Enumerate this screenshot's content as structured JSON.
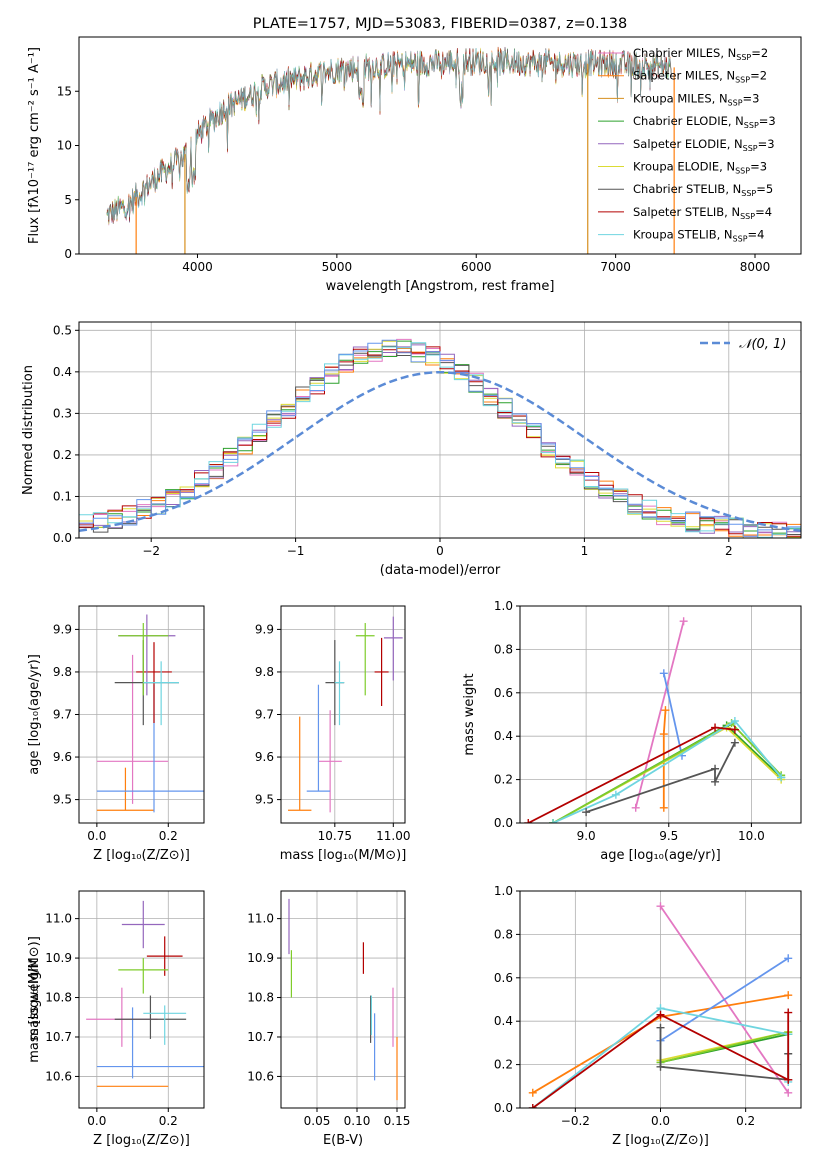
{
  "title": "PLATE=1757, MJD=53083, FIBERID=0387, z=0.138",
  "colors": [
    "#e377c2",
    "#ff7f0e",
    "#d68f1f",
    "#2ca02c",
    "#9467bd",
    "#dbdb34",
    "#555555",
    "#b30000",
    "#6fd5e0",
    "#6495ed",
    "#7fcc2b"
  ],
  "chart_data": [
    {
      "id": "spectrum",
      "type": "line",
      "xlabel": "wavelength [Angstrom, rest frame]",
      "ylabel": "Flux [fλ10⁻¹⁷ erg cm⁻² s⁻¹ A⁻¹]",
      "xlim": [
        3150,
        8330
      ],
      "ylim": [
        0,
        20
      ],
      "xticks": [
        4000,
        5000,
        6000,
        7000,
        8000
      ],
      "yticks": [
        0,
        5,
        10,
        15
      ],
      "legend_position": "right",
      "series": [
        {
          "name": "Chabrier MILES, N_SSP=2",
          "color": "#e377c2"
        },
        {
          "name": "Salpeter MILES, N_SSP=2",
          "color": "#ff7f0e"
        },
        {
          "name": "Kroupa MILES, N_SSP=3",
          "color": "#d68f1f"
        },
        {
          "name": "Chabrier ELODIE, N_SSP=3",
          "color": "#2ca02c"
        },
        {
          "name": "Salpeter ELODIE, N_SSP=3",
          "color": "#9467bd"
        },
        {
          "name": "Kroupa ELODIE, N_SSP=3",
          "color": "#dbdb34"
        },
        {
          "name": "Chabrier STELIB, N_SSP=5",
          "color": "#555555"
        },
        {
          "name": "Salpeter STELIB, N_SSP=4",
          "color": "#b30000"
        },
        {
          "name": "Kroupa STELIB, N_SSP=4",
          "color": "#6fd5e0"
        }
      ],
      "continuum": {
        "x": [
          3350,
          3500,
          3700,
          3900,
          4000,
          4200,
          4500,
          5000,
          5500,
          6000,
          6500,
          7000,
          7400
        ],
        "y": [
          3.5,
          4.5,
          7.0,
          9.0,
          11.0,
          13.5,
          15.5,
          17.0,
          17.5,
          17.8,
          17.6,
          17.5,
          17.2
        ]
      }
    },
    {
      "id": "residuals",
      "type": "bar",
      "xlabel": "(data-model)/error",
      "ylabel": "Normed distribution",
      "xlim": [
        -2.5,
        2.5
      ],
      "ylim": [
        0,
        0.52
      ],
      "xticks": [
        -2,
        -1,
        0,
        1,
        2
      ],
      "yticks": [
        0.0,
        0.1,
        0.2,
        0.3,
        0.4,
        0.5
      ],
      "legend": "𝒩(0, 1)",
      "legend_position": "top-right",
      "grid": true
    },
    {
      "id": "z-age",
      "type": "scatter",
      "xlabel": "Z [log₁₀(Z/Z⊙)]",
      "ylabel": "age  [log₁₀(age/yr)]",
      "xlim": [
        -0.05,
        0.3
      ],
      "ylim": [
        9.445,
        9.955
      ],
      "xticks": [
        0.0,
        0.2
      ],
      "yticks": [
        9.5,
        9.6,
        9.7,
        9.8,
        9.9
      ],
      "grid": true,
      "points": [
        {
          "x": 0.1,
          "y": 9.59,
          "xerr": [
            0.1,
            0.1
          ],
          "yerr": [
            0.1,
            0.25
          ],
          "color": "#e377c2"
        },
        {
          "x": 0.08,
          "y": 9.475,
          "xerr": [
            0.08,
            0.08
          ],
          "yerr": [
            0.0,
            0.1
          ],
          "color": "#ff7f0e"
        },
        {
          "x": 0.16,
          "y": 9.52,
          "xerr": [
            0.16,
            0.15
          ],
          "yerr": [
            0.05,
            0.25
          ],
          "color": "#6495ed"
        },
        {
          "x": 0.16,
          "y": 9.8,
          "xerr": [
            0.05,
            0.05
          ],
          "yerr": [
            0.12,
            0.07
          ],
          "color": "#b30000"
        },
        {
          "x": 0.13,
          "y": 9.775,
          "xerr": [
            0.08,
            0.1
          ],
          "yerr": [
            0.1,
            0.1
          ],
          "color": "#555555"
        },
        {
          "x": 0.14,
          "y": 9.885,
          "xerr": [
            0.08,
            0.08
          ],
          "yerr": [
            0.14,
            0.05
          ],
          "color": "#9467bd"
        },
        {
          "x": 0.13,
          "y": 9.885,
          "xerr": [
            0.07,
            0.07
          ],
          "yerr": [
            0.14,
            0.03
          ],
          "color": "#7fcc2b"
        },
        {
          "x": 0.18,
          "y": 9.775,
          "xerr": [
            0.05,
            0.05
          ],
          "yerr": [
            0.1,
            0.05
          ],
          "color": "#6fd5e0"
        }
      ]
    },
    {
      "id": "mass-age",
      "type": "scatter",
      "xlabel": "mass [log₁₀(M/M⊙)]",
      "ylabel": "",
      "xlim": [
        10.52,
        11.05
      ],
      "ylim": [
        9.445,
        9.955
      ],
      "xticks": [
        10.75,
        11.0
      ],
      "xtick_labels": [
        "10.75",
        "11.00"
      ],
      "yticks": [
        9.5,
        9.6,
        9.7,
        9.8,
        9.9
      ],
      "grid": true,
      "points": [
        {
          "x": 10.73,
          "y": 9.59,
          "xerr": [
            0.05,
            0.05
          ],
          "yerr": [
            0.12,
            0.12
          ],
          "color": "#e377c2"
        },
        {
          "x": 10.6,
          "y": 9.475,
          "xerr": [
            0.05,
            0.05
          ],
          "yerr": [
            0.0,
            0.22
          ],
          "color": "#ff7f0e"
        },
        {
          "x": 10.68,
          "y": 9.52,
          "xerr": [
            0.05,
            0.05
          ],
          "yerr": [
            0.0,
            0.25
          ],
          "color": "#6495ed"
        },
        {
          "x": 10.95,
          "y": 9.8,
          "xerr": [
            0.03,
            0.03
          ],
          "yerr": [
            0.08,
            0.08
          ],
          "color": "#b30000"
        },
        {
          "x": 10.75,
          "y": 9.775,
          "xerr": [
            0.04,
            0.04
          ],
          "yerr": [
            0.1,
            0.1
          ],
          "color": "#555555"
        },
        {
          "x": 11.0,
          "y": 9.88,
          "xerr": [
            0.04,
            0.04
          ],
          "yerr": [
            0.1,
            0.05
          ],
          "color": "#9467bd"
        },
        {
          "x": 10.88,
          "y": 9.885,
          "xerr": [
            0.04,
            0.04
          ],
          "yerr": [
            0.14,
            0.03
          ],
          "color": "#7fcc2b"
        },
        {
          "x": 10.77,
          "y": 9.775,
          "xerr": [
            0.02,
            0.02
          ],
          "yerr": [
            0.1,
            0.05
          ],
          "color": "#6fd5e0"
        }
      ]
    },
    {
      "id": "age-weight",
      "type": "line",
      "xlabel": "age  [log₁₀(age/yr)]",
      "ylabel": "mass weight",
      "xlim": [
        8.6,
        10.3
      ],
      "ylim": [
        0,
        1
      ],
      "xticks": [
        9.0,
        9.5,
        10.0
      ],
      "yticks": [
        0.0,
        0.2,
        0.4,
        0.6,
        0.8,
        1.0
      ],
      "grid": true,
      "series": [
        {
          "color": "#e377c2",
          "x": [
            9.3,
            9.59
          ],
          "y": [
            0.07,
            0.93
          ]
        },
        {
          "color": "#ff7f0e",
          "x": [
            9.47,
            9.47,
            9.48
          ],
          "y": [
            0.07,
            0.41,
            0.52
          ]
        },
        {
          "color": "#6495ed",
          "x": [
            9.47,
            9.58
          ],
          "y": [
            0.69,
            0.31
          ]
        },
        {
          "color": "#2ca02c",
          "x": [
            8.8,
            9.85,
            10.18
          ],
          "y": [
            0.0,
            0.45,
            0.21
          ]
        },
        {
          "color": "#dbdb34",
          "x": [
            8.8,
            9.85,
            10.18
          ],
          "y": [
            0.0,
            0.44,
            0.2
          ]
        },
        {
          "color": "#7fcc2b",
          "x": [
            8.8,
            9.88,
            10.18
          ],
          "y": [
            0.0,
            0.46,
            0.22
          ]
        },
        {
          "color": "#6fd5e0",
          "x": [
            8.8,
            9.18,
            9.9,
            10.18
          ],
          "y": [
            0.0,
            0.13,
            0.47,
            0.21
          ]
        },
        {
          "color": "#555555",
          "x": [
            9.0,
            9.78,
            9.78,
            9.9
          ],
          "y": [
            0.05,
            0.25,
            0.19,
            0.37
          ]
        },
        {
          "color": "#b30000",
          "x": [
            8.65,
            9.78,
            9.9
          ],
          "y": [
            0.0,
            0.44,
            0.43
          ]
        }
      ]
    },
    {
      "id": "z-mass",
      "type": "scatter",
      "xlabel": "Z [log₁₀(Z/Z⊙)]",
      "ylabel": "mass [log₁₀(M/M⊙)]",
      "xlim": [
        -0.05,
        0.3
      ],
      "ylim": [
        10.52,
        11.07
      ],
      "xticks": [
        0.0,
        0.2
      ],
      "yticks": [
        10.6,
        10.7,
        10.8,
        10.9,
        11.0
      ],
      "grid": true,
      "points": [
        {
          "x": 0.07,
          "y": 10.745,
          "xerr": [
            0.1,
            0.1
          ],
          "yerr": [
            0.07,
            0.08
          ],
          "color": "#e377c2"
        },
        {
          "x": 0.1,
          "y": 10.575,
          "xerr": [
            0.1,
            0.1
          ],
          "yerr": [
            0.0,
            0.0
          ],
          "color": "#ff7f0e"
        },
        {
          "x": 0.1,
          "y": 10.625,
          "xerr": [
            0.1,
            0.2
          ],
          "yerr": [
            0.03,
            0.15
          ],
          "color": "#6495ed"
        },
        {
          "x": 0.19,
          "y": 10.905,
          "xerr": [
            0.05,
            0.05
          ],
          "yerr": [
            0.05,
            0.05
          ],
          "color": "#b30000"
        },
        {
          "x": 0.15,
          "y": 10.745,
          "xerr": [
            0.1,
            0.1
          ],
          "yerr": [
            0.05,
            0.06
          ],
          "color": "#555555"
        },
        {
          "x": 0.13,
          "y": 10.985,
          "xerr": [
            0.06,
            0.06
          ],
          "yerr": [
            0.06,
            0.06
          ],
          "color": "#9467bd"
        },
        {
          "x": 0.13,
          "y": 10.87,
          "xerr": [
            0.07,
            0.07
          ],
          "yerr": [
            0.06,
            0.03
          ],
          "color": "#7fcc2b"
        },
        {
          "x": 0.19,
          "y": 10.76,
          "xerr": [
            0.06,
            0.06
          ],
          "yerr": [
            0.08,
            0.02
          ],
          "color": "#6fd5e0"
        }
      ]
    },
    {
      "id": "ebv-mass",
      "type": "scatter",
      "xlabel": "E(B-V)",
      "ylabel": "",
      "xlim": [
        0.005,
        0.16
      ],
      "ylim": [
        10.52,
        11.07
      ],
      "xticks": [
        0.05,
        0.1,
        0.15
      ],
      "xtick_labels": [
        "0.05",
        "0.10",
        "0.15"
      ],
      "yticks": [
        10.6,
        10.7,
        10.8,
        10.9,
        11.0
      ],
      "grid": true,
      "points": [
        {
          "x": 0.145,
          "y": 10.745,
          "xerr": [
            0,
            0
          ],
          "yerr": [
            0.07,
            0.08
          ],
          "color": "#e377c2"
        },
        {
          "x": 0.15,
          "y": 10.62,
          "xerr": [
            0,
            0
          ],
          "yerr": [
            0.08,
            0.08
          ],
          "color": "#ff7f0e"
        },
        {
          "x": 0.122,
          "y": 10.68,
          "xerr": [
            0,
            0
          ],
          "yerr": [
            0.09,
            0.08
          ],
          "color": "#6495ed"
        },
        {
          "x": 0.108,
          "y": 10.9,
          "xerr": [
            0,
            0
          ],
          "yerr": [
            0.04,
            0.04
          ],
          "color": "#b30000"
        },
        {
          "x": 0.117,
          "y": 10.745,
          "xerr": [
            0,
            0
          ],
          "yerr": [
            0.06,
            0.06
          ],
          "color": "#555555"
        },
        {
          "x": 0.015,
          "y": 10.98,
          "xerr": [
            0,
            0
          ],
          "yerr": [
            0.07,
            0.07
          ],
          "color": "#9467bd"
        },
        {
          "x": 0.018,
          "y": 10.86,
          "xerr": [
            0,
            0
          ],
          "yerr": [
            0.06,
            0.06
          ],
          "color": "#7fcc2b"
        },
        {
          "x": 0.118,
          "y": 10.755,
          "xerr": [
            0,
            0
          ],
          "yerr": [
            0.05,
            0.05
          ],
          "color": "#6fd5e0"
        }
      ]
    },
    {
      "id": "z-weight",
      "type": "line",
      "xlabel": "Z [log₁₀(Z/Z⊙)]",
      "ylabel": "mass weight",
      "xlim": [
        -0.33,
        0.33
      ],
      "ylim": [
        0,
        1
      ],
      "xticks": [
        -0.2,
        0.0,
        0.2
      ],
      "yticks": [
        0.0,
        0.2,
        0.4,
        0.6,
        0.8,
        1.0
      ],
      "grid": true,
      "series": [
        {
          "color": "#e377c2",
          "x": [
            0.0,
            0.3
          ],
          "y": [
            0.93,
            0.07
          ]
        },
        {
          "color": "#ff7f0e",
          "x": [
            -0.3,
            0.0,
            0.3
          ],
          "y": [
            0.07,
            0.42,
            0.52
          ]
        },
        {
          "color": "#6495ed",
          "x": [
            0.0,
            0.3
          ],
          "y": [
            0.31,
            0.69
          ]
        },
        {
          "color": "#2ca02c",
          "x": [
            0.0,
            0.3
          ],
          "y": [
            0.21,
            0.34
          ]
        },
        {
          "color": "#dbdb34",
          "x": [
            0.0,
            0.3
          ],
          "y": [
            0.22,
            0.35
          ]
        },
        {
          "color": "#7fcc2b",
          "x": [
            0.0,
            0.3
          ],
          "y": [
            0.21,
            0.35
          ]
        },
        {
          "color": "#6fd5e0",
          "x": [
            -0.3,
            0.0,
            0.3,
            0.3
          ],
          "y": [
            0.0,
            0.46,
            0.34,
            0.12
          ]
        },
        {
          "color": "#555555",
          "x": [
            0.0,
            0.0,
            0.3,
            0.3
          ],
          "y": [
            0.37,
            0.19,
            0.13,
            0.25
          ]
        },
        {
          "color": "#b30000",
          "x": [
            -0.3,
            0.0,
            0.3,
            0.3
          ],
          "y": [
            0.0,
            0.43,
            0.13,
            0.44
          ]
        }
      ]
    }
  ]
}
